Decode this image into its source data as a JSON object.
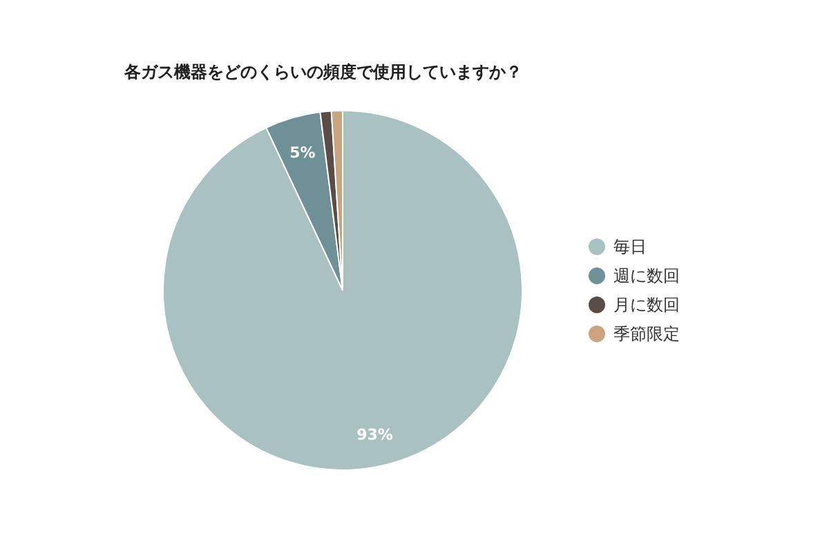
{
  "chart_data": {
    "type": "pie",
    "title": "各ガス機器をどのくらいの頻度で使用していますか？",
    "categories": [
      "毎日",
      "週に数回",
      "月に数回",
      "季節限定"
    ],
    "values": [
      93,
      5,
      1,
      1
    ],
    "colors": [
      "#a9c1c1",
      "#6f9096",
      "#5a4d48",
      "#c9a47e"
    ],
    "value_labels": [
      "93%",
      "5%",
      null,
      null
    ],
    "legend": "right"
  }
}
